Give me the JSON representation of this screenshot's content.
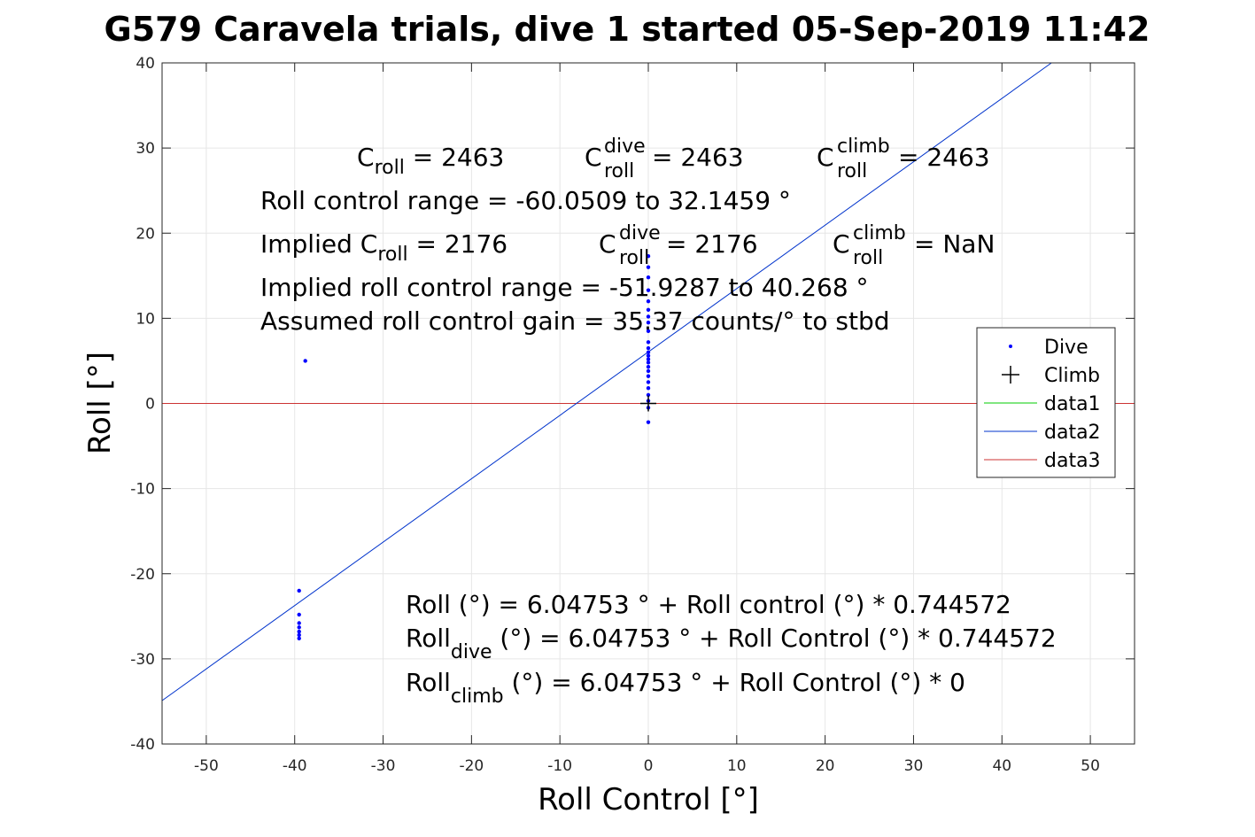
{
  "chart_data": {
    "type": "scatter",
    "title": "G579 Caravela trials, dive 1 started 05-Sep-2019 11:42",
    "xlabel": "Roll Control [°]",
    "ylabel": "Roll [°]",
    "xlim": [
      -55,
      55
    ],
    "ylim": [
      -40,
      40
    ],
    "xticks": [
      -50,
      -40,
      -30,
      -20,
      -10,
      0,
      10,
      20,
      30,
      40,
      50
    ],
    "yticks": [
      -40,
      -30,
      -20,
      -10,
      0,
      10,
      20,
      30,
      40
    ],
    "grid": true,
    "legend_position": "right",
    "colors": {
      "dive": "#0000ff",
      "climb": "#000000",
      "data1": "#00cc00",
      "data2": "#0033cc",
      "data3": "#cc3333"
    },
    "series": [
      {
        "name": "Dive",
        "marker": "dot",
        "points": [
          [
            -38.8,
            5.0
          ],
          [
            -39.5,
            -22.0
          ],
          [
            -39.5,
            -24.8
          ],
          [
            -39.5,
            -25.8
          ],
          [
            -39.5,
            -26.3
          ],
          [
            -39.5,
            -26.8
          ],
          [
            -39.5,
            -27.2
          ],
          [
            -39.5,
            -27.6
          ],
          [
            0.0,
            17.3
          ],
          [
            0.0,
            16.0
          ],
          [
            0.0,
            14.8
          ],
          [
            0.0,
            13.3
          ],
          [
            0.0,
            12.0
          ],
          [
            0.0,
            11.0
          ],
          [
            0.0,
            10.2
          ],
          [
            0.0,
            9.5
          ],
          [
            0.0,
            8.5
          ],
          [
            0.0,
            7.2
          ],
          [
            0.0,
            6.5
          ],
          [
            0.0,
            6.0
          ],
          [
            0.0,
            5.6
          ],
          [
            0.0,
            5.2
          ],
          [
            0.0,
            4.8
          ],
          [
            0.0,
            4.3
          ],
          [
            0.0,
            3.8
          ],
          [
            0.0,
            3.2
          ],
          [
            0.0,
            2.5
          ],
          [
            0.0,
            1.8
          ],
          [
            0.0,
            1.0
          ],
          [
            0.0,
            0.3
          ],
          [
            0.0,
            -0.5
          ],
          [
            0.0,
            -2.2
          ]
        ]
      },
      {
        "name": "Climb",
        "marker": "plus",
        "points": [
          [
            0.0,
            0.0
          ]
        ]
      },
      {
        "name": "data1",
        "marker": "line",
        "points": []
      },
      {
        "name": "data2",
        "marker": "line",
        "line": {
          "intercept": 6.04753,
          "slope": 0.744572
        }
      },
      {
        "name": "data3",
        "marker": "line",
        "line": {
          "intercept": 0,
          "slope": 0
        }
      }
    ],
    "annotations": {
      "c_roll": {
        "base": "C",
        "sub": "roll",
        "value": " = 2463"
      },
      "c_roll_dive": {
        "base": "C",
        "sup": "dive",
        "sub": "roll",
        "value": " = 2463"
      },
      "c_roll_climb": {
        "base": "C",
        "sup": "climb",
        "sub": "roll",
        "value": " = 2463"
      },
      "range_line": "Roll control range = -60.0509 to 32.1459 °",
      "implied_c_roll": {
        "prefix": "Implied C",
        "sub": "roll",
        "value": " = 2176"
      },
      "implied_c_roll_dive": {
        "base": "C",
        "sup": "dive",
        "sub": "roll",
        "value": " = 2176"
      },
      "implied_c_roll_climb": {
        "base": "C",
        "sup": "climb",
        "sub": "roll",
        "value": " =  NaN"
      },
      "implied_range_line": "Implied roll control range = -51.9287 to 40.268 °",
      "gain_line": "Assumed roll control gain = 35.37 counts/° to stbd",
      "fit_line": "Roll (°) = 6.04753 ° + Roll control (°) * 0.744572",
      "fit_dive": {
        "base": "Roll",
        "sub": "dive",
        "value": " (°) = 6.04753 ° + Roll Control (°) * 0.744572"
      },
      "fit_climb": {
        "base": "Roll",
        "sub": "climb",
        "value": " (°) = 6.04753 ° + Roll Control (°) * 0"
      }
    }
  }
}
